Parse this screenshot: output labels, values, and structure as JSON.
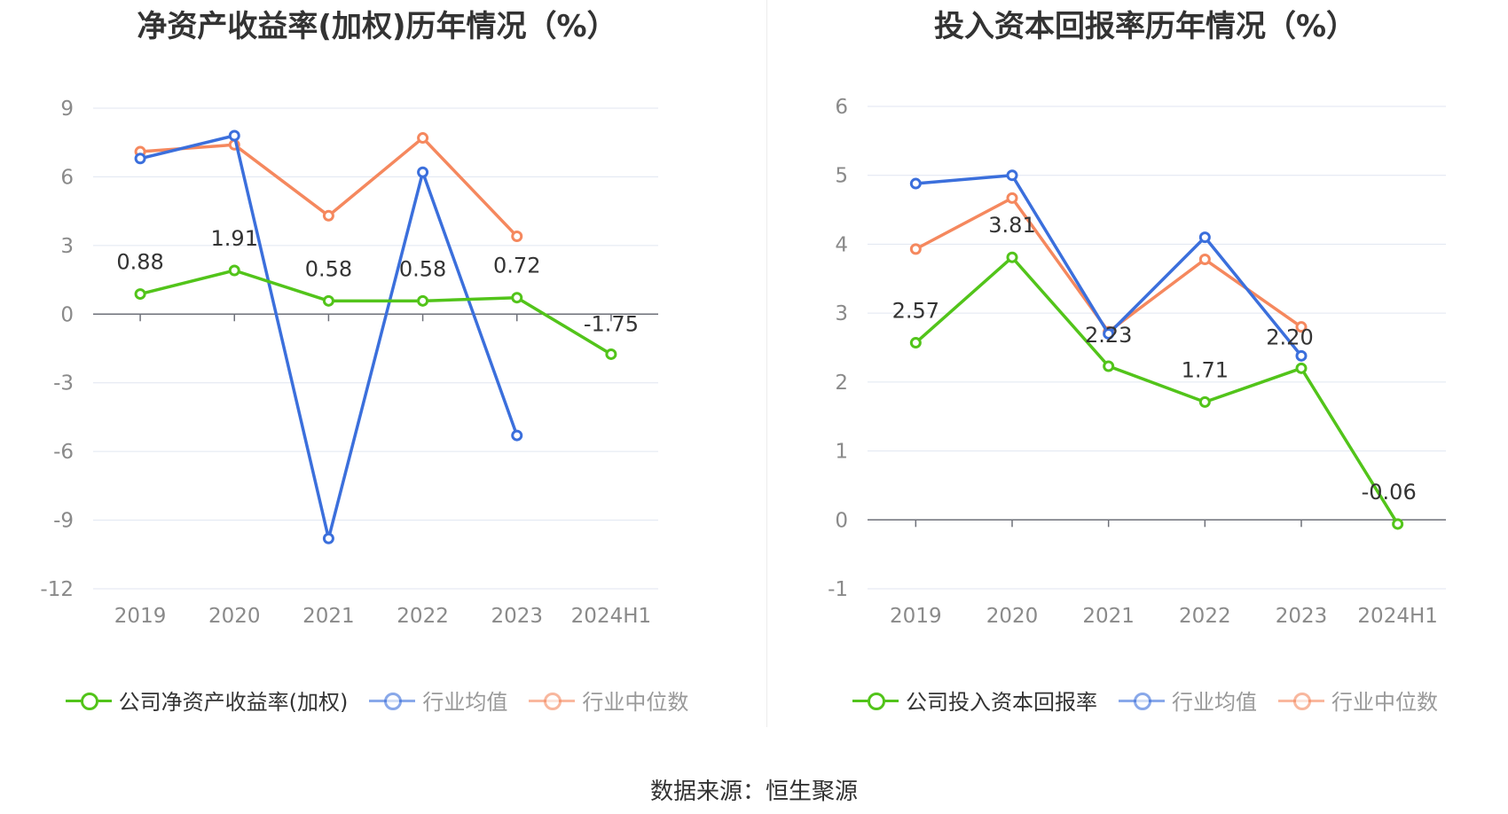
{
  "source_text": "数据来源：恒生聚源",
  "colors": {
    "company": "#52c41a",
    "industry_avg": "#3b6fdc",
    "industry_median": "#f5885e"
  },
  "chart_data": [
    {
      "type": "line",
      "title": "净资产收益率(加权)历年情况（%）",
      "categories": [
        "2019",
        "2020",
        "2021",
        "2022",
        "2023",
        "2024H1"
      ],
      "ylim": [
        -12,
        9
      ],
      "yticks": [
        -12,
        -9,
        -6,
        -3,
        0,
        3,
        6,
        9
      ],
      "grid": true,
      "legend_position": "bottom",
      "series": [
        {
          "name": "公司净资产收益率(加权)",
          "color": "#52c41a",
          "values": [
            0.88,
            1.91,
            0.58,
            0.58,
            0.72,
            -1.75
          ],
          "labels": [
            "0.88",
            "1.91",
            "0.58",
            "0.58",
            "0.72",
            "-1.75"
          ]
        },
        {
          "name": "行业均值",
          "color": "#3b6fdc",
          "values": [
            6.8,
            7.8,
            -9.8,
            6.2,
            -5.3,
            null
          ]
        },
        {
          "name": "行业中位数",
          "color": "#f5885e",
          "values": [
            7.1,
            7.4,
            4.3,
            7.7,
            3.4,
            null
          ]
        }
      ]
    },
    {
      "type": "line",
      "title": "投入资本回报率历年情况（%）",
      "categories": [
        "2019",
        "2020",
        "2021",
        "2022",
        "2023",
        "2024H1"
      ],
      "ylim": [
        -1,
        6
      ],
      "yticks": [
        -1,
        0,
        1,
        2,
        3,
        4,
        5,
        6
      ],
      "grid": true,
      "legend_position": "bottom",
      "series": [
        {
          "name": "公司投入资本回报率",
          "color": "#52c41a",
          "values": [
            2.57,
            3.81,
            2.23,
            1.71,
            2.2,
            -0.06
          ],
          "labels": [
            "2.57",
            "3.81",
            "2.23",
            "1.71",
            "2.20",
            "-0.06"
          ]
        },
        {
          "name": "行业均值",
          "color": "#3b6fdc",
          "values": [
            4.88,
            5.0,
            2.7,
            4.1,
            2.38,
            null
          ]
        },
        {
          "name": "行业中位数",
          "color": "#f5885e",
          "values": [
            3.93,
            4.67,
            2.73,
            3.78,
            2.8,
            null
          ]
        }
      ]
    }
  ]
}
